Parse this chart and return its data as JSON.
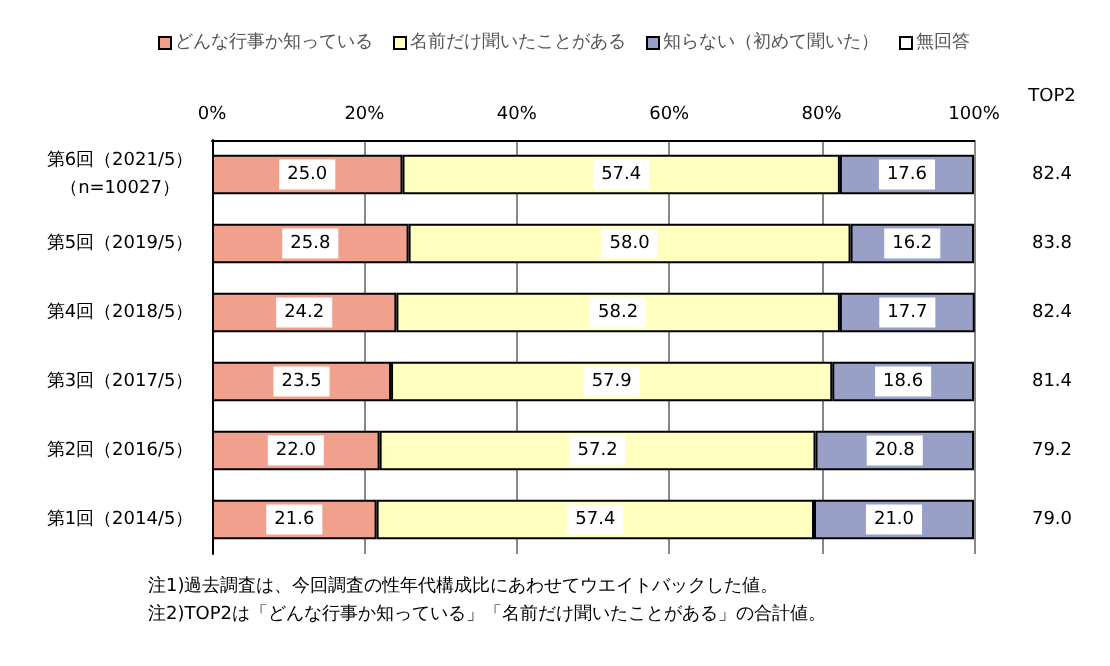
{
  "chart_data": {
    "type": "bar",
    "orientation": "horizontal",
    "stacked": true,
    "grid": "x",
    "legend": "top",
    "categories": [
      "第6回（2021/5）（n=10027）",
      "第5回（2019/5）",
      "第4回（2018/5）",
      "第3回（2017/5）",
      "第2回（2016/5）",
      "第1回（2014/5）"
    ],
    "series": [
      {
        "name": "どんな行事か知っている",
        "color": "#f0a08c",
        "values": [
          25.0,
          25.8,
          24.2,
          23.5,
          22.0,
          21.6
        ],
        "value_labels": [
          "25.0",
          "25.8",
          "24.2",
          "23.5",
          "22.0",
          "21.6"
        ]
      },
      {
        "name": "名前だけ聞いたことがある",
        "color": "#ffffc0",
        "values": [
          57.4,
          58.0,
          58.2,
          57.9,
          57.2,
          57.4
        ],
        "value_labels": [
          "57.4",
          "58.0",
          "58.2",
          "57.9",
          "57.2",
          "57.4"
        ]
      },
      {
        "name": "知らない（初めて聞いた）",
        "color": "#99a0c8",
        "values": [
          17.6,
          16.2,
          17.7,
          18.6,
          20.8,
          21.0
        ],
        "value_labels": [
          "17.6",
          "16.2",
          "17.7",
          "18.6",
          "20.8",
          "21.0"
        ]
      },
      {
        "name": "無回答",
        "color": "#ffffff",
        "values": [
          null,
          null,
          null,
          null,
          null,
          null
        ]
      }
    ],
    "xlim": [
      0,
      100
    ],
    "xticks": [
      {
        "value": 0,
        "label": "0%"
      },
      {
        "value": 20,
        "label": "20%"
      },
      {
        "value": 40,
        "label": "40%"
      },
      {
        "value": 60,
        "label": "60%"
      },
      {
        "value": 80,
        "label": "80%"
      },
      {
        "value": 100,
        "label": "100%"
      }
    ],
    "annotations": [
      "TOP2",
      "82.4",
      "83.8",
      "82.4",
      "81.4",
      "79.2",
      "79.0",
      "注1)過去調査は、今回調査の性年代構成比にあわせてウエイトバックした値。",
      "注2)TOP2は「どんな行事か知っている」「名前だけ聞いたことがある」の合計値。"
    ]
  }
}
